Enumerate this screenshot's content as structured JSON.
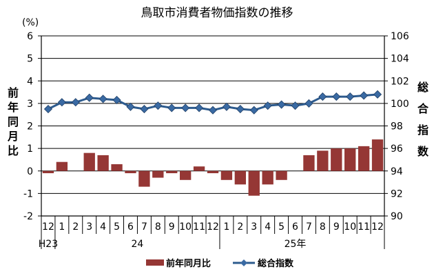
{
  "colors": {
    "bar": "#953735",
    "line": "#2d5b8e",
    "marker": "#3a6aa3",
    "axis": "#000000",
    "grid": "#000000"
  },
  "chart_data": {
    "type": "bar+line",
    "title": "鳥取市消費者物価指数の推移",
    "y_left_unit": "(%)",
    "y_left_label": "前年同月比",
    "y_right_label": "総合指数",
    "y_left_range": [
      -2,
      6
    ],
    "y_left_ticks": [
      "-2",
      "-1",
      "0",
      "1",
      "2",
      "3",
      "4",
      "5",
      "6"
    ],
    "y_right_range": [
      90,
      106
    ],
    "y_right_ticks": [
      "90",
      "92",
      "94",
      "96",
      "98",
      "100",
      "102",
      "104",
      "106"
    ],
    "grid": "horizontal",
    "legend_position": "bottom",
    "categories": [
      "12",
      "1",
      "2",
      "3",
      "4",
      "5",
      "6",
      "7",
      "8",
      "9",
      "10",
      "11",
      "12",
      "1",
      "2",
      "3",
      "4",
      "5",
      "6",
      "7",
      "8",
      "9",
      "10",
      "11",
      "12"
    ],
    "year_groups": [
      {
        "label": "H23",
        "start": 0,
        "end": 0
      },
      {
        "label": "24",
        "start": 1,
        "end": 12
      },
      {
        "label": "25年",
        "start": 13,
        "end": 24
      }
    ],
    "series": [
      {
        "name": "前年同月比",
        "type": "bar",
        "axis": "left",
        "values": [
          -0.1,
          0.4,
          0.0,
          0.8,
          0.7,
          0.3,
          -0.1,
          -0.7,
          -0.3,
          -0.1,
          -0.4,
          0.2,
          -0.1,
          -0.4,
          -0.6,
          -1.1,
          -0.6,
          -0.4,
          0.0,
          0.7,
          0.9,
          1.0,
          1.0,
          1.1,
          1.4
        ]
      },
      {
        "name": "総合指数",
        "type": "line",
        "axis": "right",
        "values": [
          99.5,
          100.1,
          100.1,
          100.5,
          100.4,
          100.3,
          99.7,
          99.5,
          99.8,
          99.6,
          99.6,
          99.6,
          99.4,
          99.7,
          99.5,
          99.4,
          99.8,
          99.9,
          99.8,
          100.0,
          100.6,
          100.6,
          100.6,
          100.7,
          100.8
        ]
      }
    ]
  }
}
